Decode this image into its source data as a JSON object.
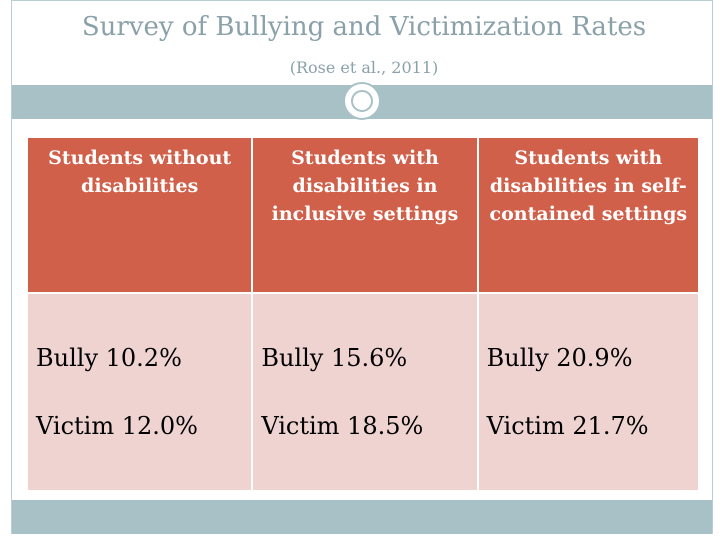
{
  "title": "Survey of Bullying and Victimization Rates",
  "subtitle": "(Rose et al., 2011)",
  "colors": {
    "header_bg": "#d0604a",
    "cell_bg": "#eed3d1",
    "band": "#a8c1c7",
    "title": "#8aa1aa"
  },
  "table": {
    "headers": [
      "Students without disabilities",
      "Students with disabilities in inclusive settings",
      "Students with disabilities in self-contained settings"
    ],
    "rows": [
      {
        "bully": "Bully 10.2%",
        "victim": "Victim 12.0%"
      },
      {
        "bully": "Bully 15.6%",
        "victim": "Victim 18.5%"
      },
      {
        "bully": "Bully 20.9%",
        "victim": "Victim 21.7%"
      }
    ]
  }
}
